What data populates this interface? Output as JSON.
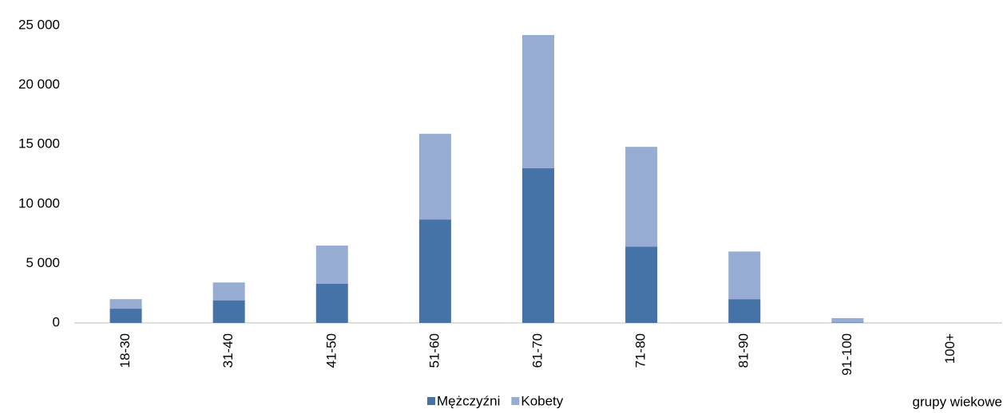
{
  "chart_data": {
    "type": "stacked_bar",
    "x_label": "grupy wiekowe",
    "categories": [
      "18-30",
      "31-40",
      "41-50",
      "51-60",
      "61-70",
      "71-80",
      "81-90",
      "91-100",
      "100+"
    ],
    "series": [
      {
        "name": "Mężczyźni",
        "color": "#4573a7",
        "values": [
          1200,
          1900,
          3300,
          8700,
          13000,
          6400,
          2000,
          50,
          0
        ]
      },
      {
        "name": "Kobety",
        "color": "#97acd2",
        "values": [
          800,
          1500,
          3200,
          7200,
          11200,
          8400,
          4000,
          350,
          0
        ]
      }
    ],
    "ylim": [
      0,
      25000
    ],
    "yticks": [
      0,
      {
        "value": 5000,
        "label": "5 000"
      },
      {
        "value": 10000,
        "label": "10 000"
      },
      {
        "value": 15000,
        "label": "15 000"
      },
      {
        "value": 20000,
        "label": "20 000"
      },
      {
        "value": 25000,
        "label": "25 000"
      }
    ],
    "legend": "bottom"
  }
}
